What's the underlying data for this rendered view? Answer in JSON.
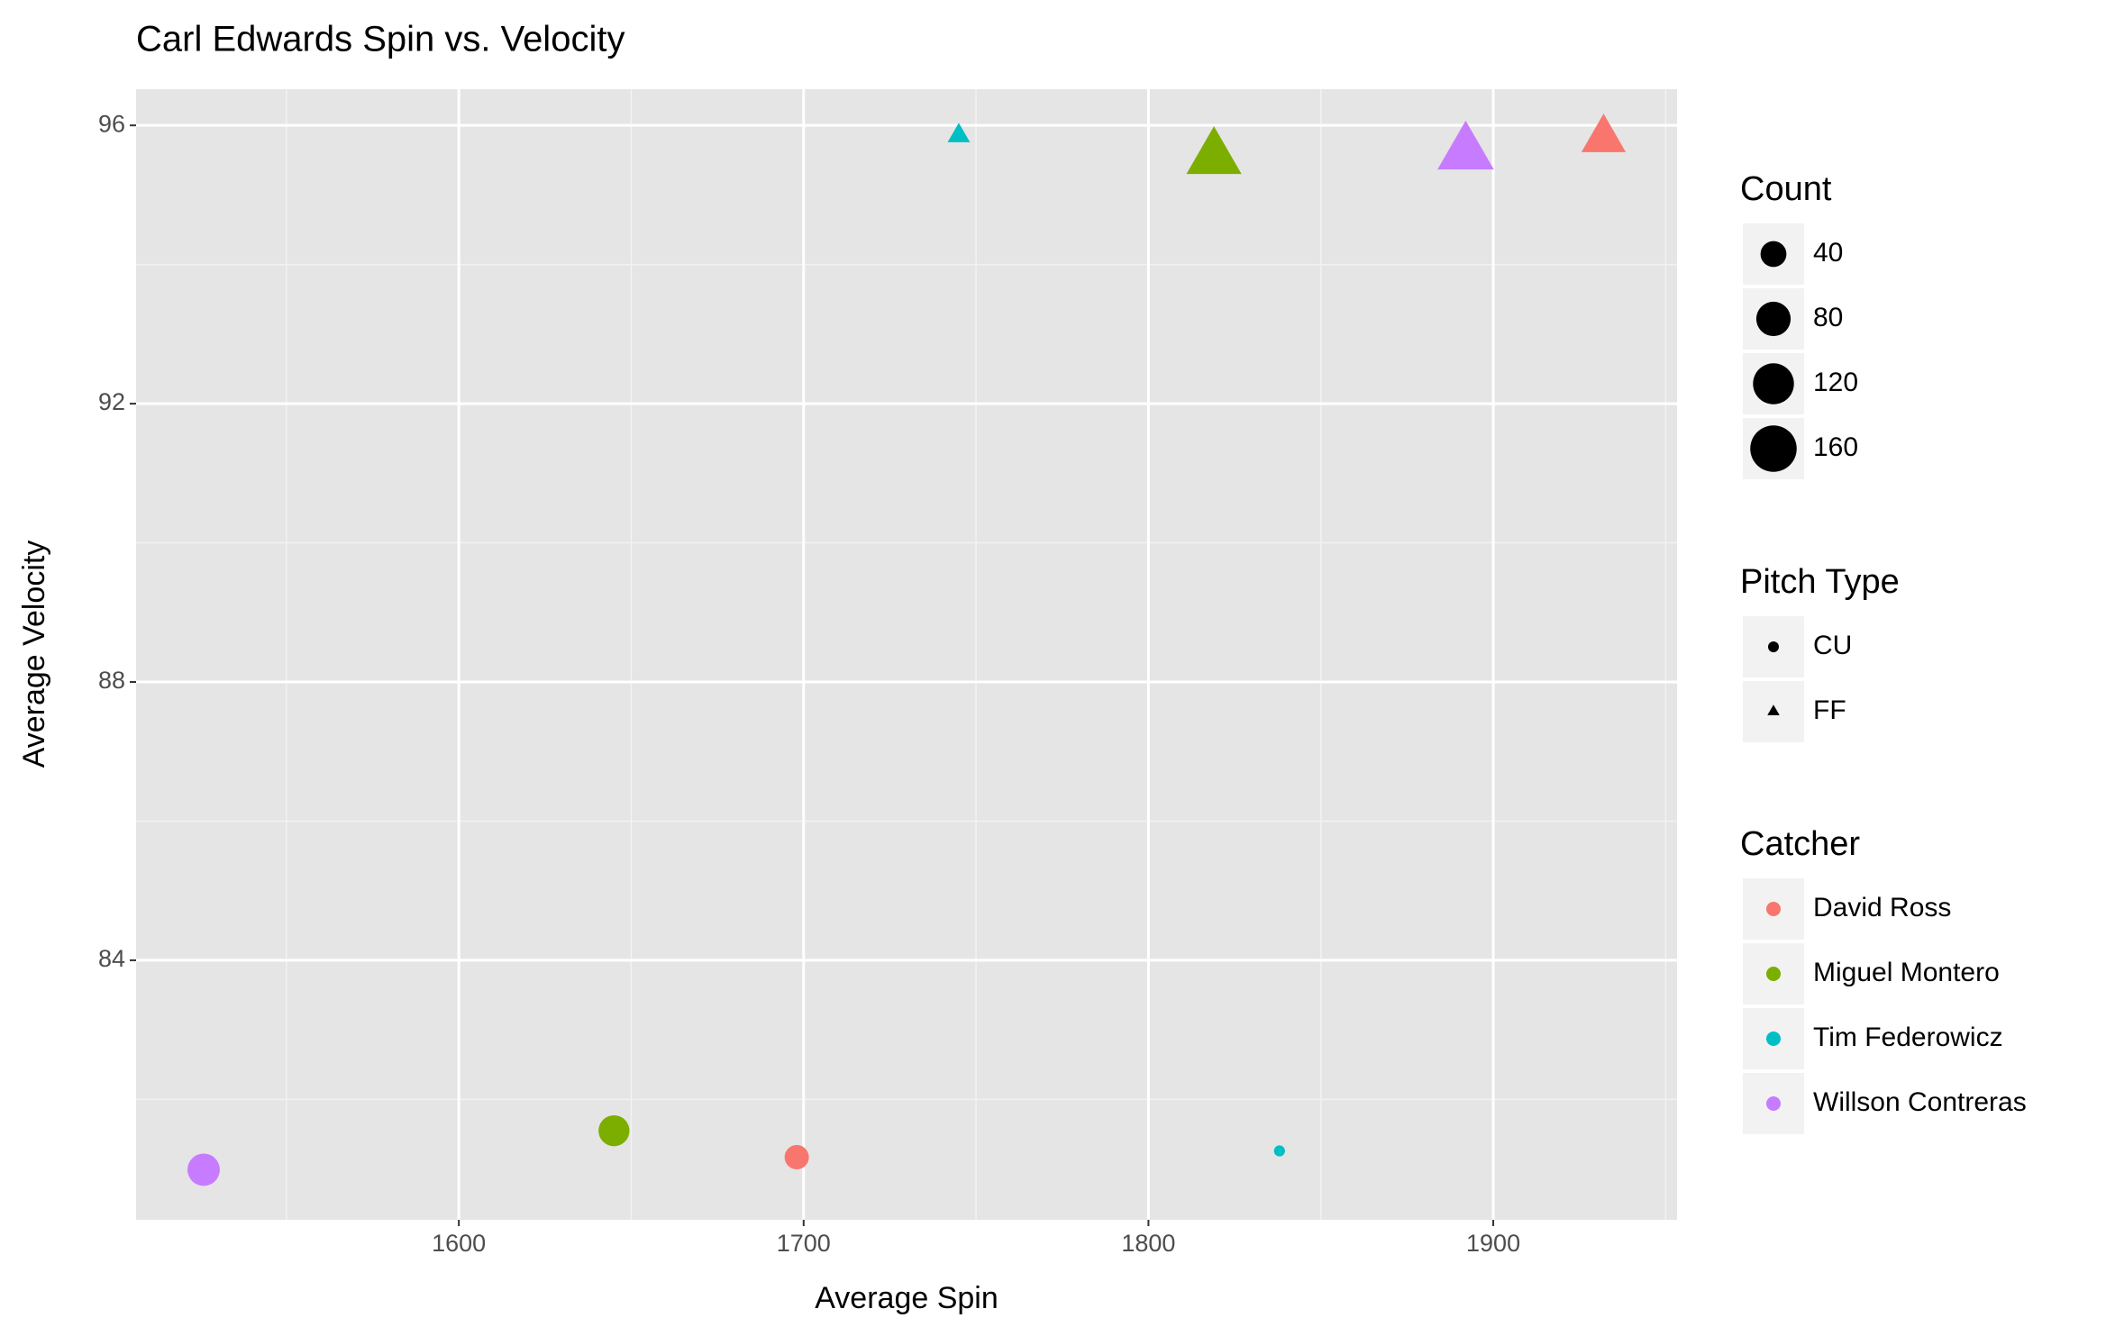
{
  "chart_data": {
    "type": "scatter",
    "title": "Carl Edwards Spin vs. Velocity",
    "x_label": "Average Spin",
    "y_label": "Average Velocity",
    "xlim": [
      1506.4,
      1953.3
    ],
    "xticks": [
      1600,
      1700,
      1800,
      1900
    ],
    "ylim": [
      80.27,
      96.52
    ],
    "yticks": [
      84,
      88,
      92,
      96
    ],
    "grid": true,
    "size_legend": {
      "title": "Count",
      "values": [
        40,
        80,
        120,
        160
      ]
    },
    "shape_legend": {
      "title": "Pitch Type",
      "items": [
        {
          "label": "CU",
          "shape": "circle"
        },
        {
          "label": "FF",
          "shape": "triangle"
        }
      ]
    },
    "color_legend_title": "Catcher",
    "series": [
      {
        "name": "David Ross",
        "color": "#F8766D",
        "x": [
          1698,
          1932
        ],
        "y": [
          81.17,
          95.8
        ],
        "size": [
          34,
          110
        ],
        "pitch_type": [
          "CU",
          "FF"
        ]
      },
      {
        "name": "Miguel Montero",
        "color": "#7CAE00",
        "x": [
          1645,
          1819
        ],
        "y": [
          81.55,
          95.53
        ],
        "size": [
          62,
          180
        ],
        "pitch_type": [
          "CU",
          "FF"
        ]
      },
      {
        "name": "Tim Federowicz",
        "color": "#00BFC4",
        "x": [
          1838,
          1745
        ],
        "y": [
          81.26,
          95.85
        ],
        "size": [
          3,
          20
        ],
        "pitch_type": [
          "CU",
          "FF"
        ]
      },
      {
        "name": "Willson Contreras",
        "color": "#C77CFF",
        "x": [
          1526,
          1892
        ],
        "y": [
          80.99,
          95.6
        ],
        "size": [
          69,
          190
        ],
        "pitch_type": [
          "CU",
          "FF"
        ]
      }
    ]
  }
}
